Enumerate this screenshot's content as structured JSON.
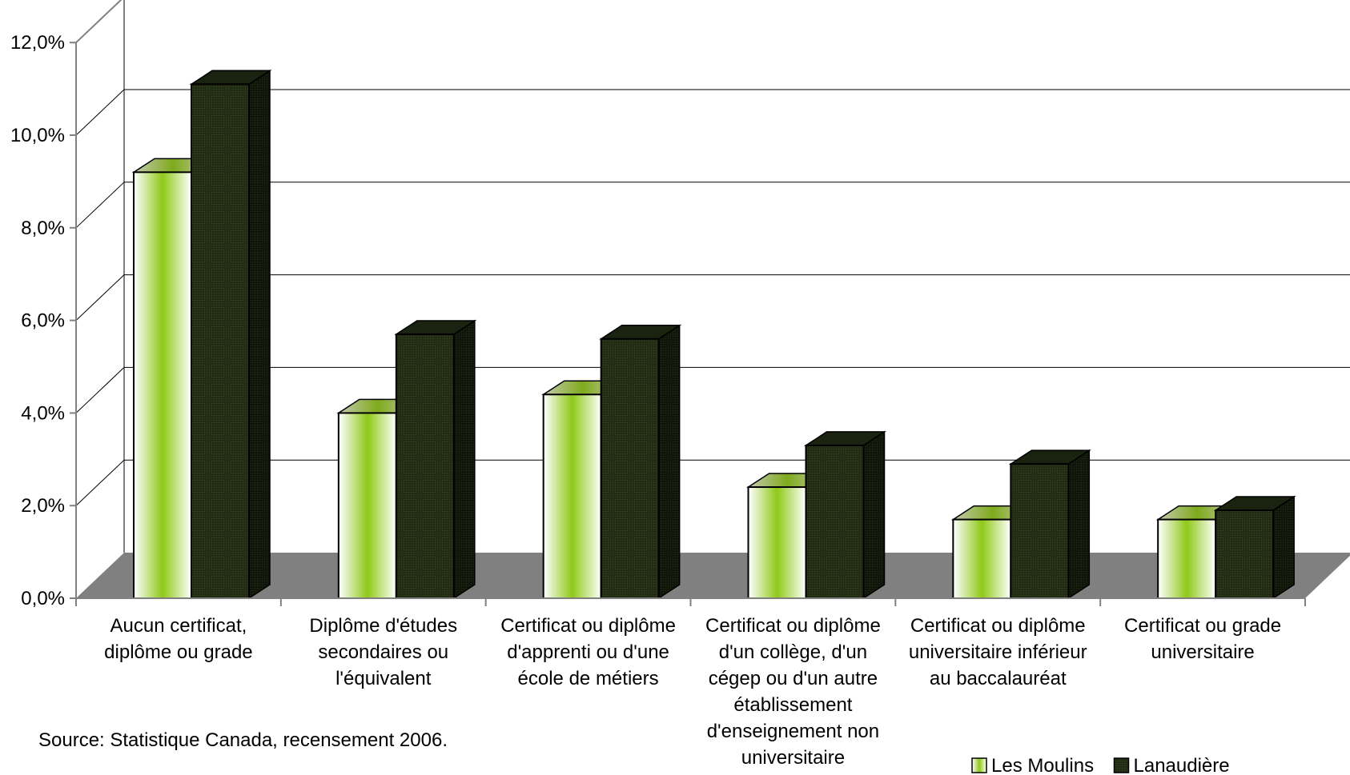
{
  "chart_data": {
    "type": "bar",
    "title": "",
    "xlabel": "",
    "ylabel": "",
    "ylim": [
      0,
      12
    ],
    "y_ticks": [
      "0,0%",
      "2,0%",
      "4,0%",
      "6,0%",
      "8,0%",
      "10,0%",
      "12,0%"
    ],
    "categories": [
      [
        "Aucun certificat,",
        "diplôme ou grade"
      ],
      [
        "Diplôme d'études",
        "secondaires ou",
        "l'équivalent"
      ],
      [
        "Certificat ou diplôme",
        "d'apprenti ou d'une",
        "école de métiers"
      ],
      [
        "Certificat ou diplôme",
        "d'un collège, d'un",
        "cégep ou d'un autre",
        "établissement",
        "d'enseignement non",
        "universitaire"
      ],
      [
        "Certificat ou diplôme",
        "universitaire inférieur",
        "au baccalauréat"
      ],
      [
        "Certificat ou grade",
        "universitaire"
      ]
    ],
    "series": [
      {
        "name": "Les Moulins",
        "values": [
          9.2,
          4.0,
          4.4,
          2.4,
          1.7,
          1.7
        ]
      },
      {
        "name": "Lanaudière",
        "values": [
          11.1,
          5.7,
          5.6,
          3.3,
          2.9,
          1.9
        ]
      }
    ],
    "grid": true,
    "legend_position": "bottom-right",
    "three_d": true,
    "colors": {
      "series1_light": "#ffffff",
      "series1_mid": "#8fc918",
      "series1_top": "#a9b88a",
      "series2_front": "#222c14",
      "series2_side": "#10170a",
      "series2_top": "#1a2210",
      "floor": "#808080",
      "grid": "#000000",
      "axis": "#808080"
    }
  },
  "source_text": "Source: Statistique Canada, recensement 2006."
}
